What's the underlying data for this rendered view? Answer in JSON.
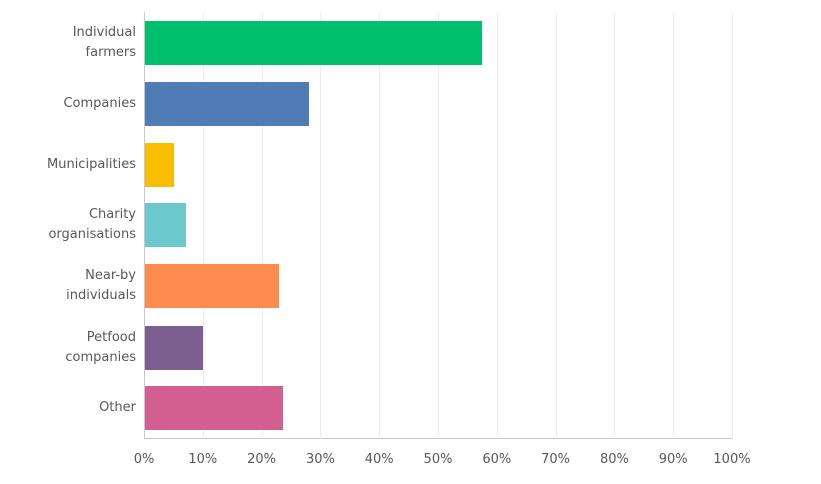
{
  "chart_data": {
    "type": "bar",
    "orientation": "horizontal",
    "title": "",
    "xlabel": "",
    "ylabel": "",
    "xlim": [
      0,
      100
    ],
    "grid": true,
    "legend": null,
    "categories": [
      "Individual farmers",
      "Companies",
      "Municipalities",
      "Charity organisations",
      "Near-by individuals",
      "Petfood companies",
      "Other"
    ],
    "values": [
      57.3,
      27.9,
      4.9,
      7.0,
      22.8,
      9.9,
      23.5
    ],
    "colors": [
      "#00bf6f",
      "#507cb6",
      "#f9be00",
      "#6bc8cd",
      "#ff8b4f",
      "#7d5e90",
      "#d25f90"
    ],
    "x_ticks": [
      "0%",
      "10%",
      "20%",
      "30%",
      "40%",
      "50%",
      "60%",
      "70%",
      "80%",
      "90%",
      "100%"
    ]
  },
  "labels": {
    "cat0": [
      "Individual",
      "farmers"
    ],
    "cat1": [
      "Companies"
    ],
    "cat2": [
      "Municipalities"
    ],
    "cat3": [
      "Charity",
      "organisations"
    ],
    "cat4": [
      "Near-by",
      "individuals"
    ],
    "cat5": [
      "Petfood",
      "companies"
    ],
    "cat6": [
      "Other"
    ]
  }
}
